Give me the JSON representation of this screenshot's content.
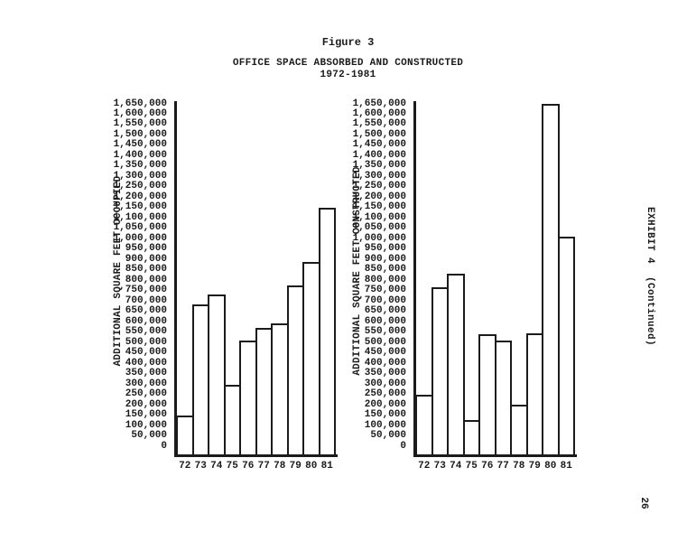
{
  "header": {
    "figure_label": "Figure 3",
    "title": "OFFICE SPACE ABSORBED AND CONSTRUCTED",
    "subtitle": "1972-1981"
  },
  "side": {
    "exhibit_label": "EXHIBIT 4  (Continued)",
    "page_number": "26"
  },
  "colors": {
    "ink": "#1b1b1b",
    "paper": "#ffffff",
    "bar_fill": "#ffffff",
    "bar_border": "#1b1b1b"
  },
  "chart_data": [
    {
      "type": "bar",
      "title": "OFFICE SPACE ABSORBED AND CONSTRUCTED 1972-1981 (absorbed)",
      "ylabel": "ADDITIONAL SQUARE FEET OCCUPIED",
      "xlabel": "",
      "categories": [
        "72",
        "73",
        "74",
        "75",
        "76",
        "77",
        "78",
        "79",
        "80",
        "81"
      ],
      "values": [
        150000,
        685000,
        730000,
        295000,
        510000,
        570000,
        590000,
        775000,
        890000,
        1150000
      ],
      "ylim": [
        0,
        1650000
      ],
      "ytick_step": 50000,
      "grid": false,
      "legend": "none"
    },
    {
      "type": "bar",
      "title": "OFFICE SPACE ABSORBED AND CONSTRUCTED 1972-1981 (constructed)",
      "ylabel": "ADDITIONAL SQUARE FEET CONSTRUCTED",
      "xlabel": "",
      "categories": [
        "72",
        "73",
        "74",
        "75",
        "76",
        "77",
        "78",
        "79",
        "80",
        "81"
      ],
      "values": [
        250000,
        765000,
        830000,
        125000,
        540000,
        510000,
        200000,
        545000,
        1650000,
        1010000
      ],
      "ylim": [
        0,
        1650000
      ],
      "ytick_step": 50000,
      "grid": false,
      "legend": "none"
    }
  ]
}
